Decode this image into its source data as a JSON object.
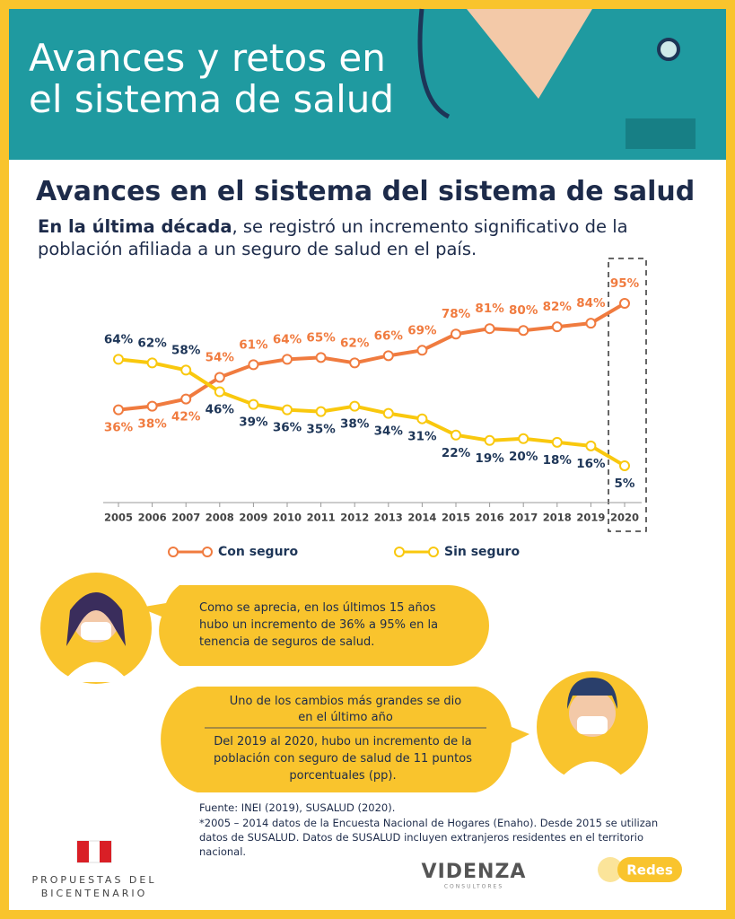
{
  "header": {
    "title_lines": [
      "Avances y retos en",
      "el sistema de salud"
    ]
  },
  "heading": "Avances en el sistema del sistema de salud",
  "intro": {
    "bold": "En la última década",
    "text": ", se registró un incremento significativo de la población afiliada a un seguro de salud en el país."
  },
  "chart_data": {
    "type": "line",
    "categories": [
      "2005",
      "2006",
      "2007",
      "2008",
      "2009",
      "2010",
      "2011",
      "2012",
      "2013",
      "2014",
      "2015",
      "2016",
      "2017",
      "2018",
      "2019",
      "2020"
    ],
    "series": [
      {
        "name": "Con seguro",
        "color": "#f07b3f",
        "values": [
          36,
          38,
          42,
          54,
          61,
          64,
          65,
          62,
          66,
          69,
          78,
          81,
          80,
          82,
          84,
          95
        ],
        "value_labels": [
          "36%",
          "38%",
          "42%",
          "54%",
          "61%",
          "64%",
          "65%",
          "62%",
          "66%",
          "69%",
          "78%",
          "81%",
          "80%",
          "82%",
          "84%",
          "95%"
        ]
      },
      {
        "name": "Sin seguro",
        "color": "#f9c80e",
        "values": [
          64,
          62,
          58,
          46,
          39,
          36,
          35,
          38,
          34,
          31,
          22,
          19,
          20,
          18,
          16,
          5
        ],
        "value_labels": [
          "64%",
          "62%",
          "58%",
          "46%",
          "39%",
          "36%",
          "35%",
          "38%",
          "34%",
          "31%",
          "22%",
          "19%",
          "20%",
          "18%",
          "16%",
          "5%"
        ]
      }
    ]
  },
  "bubbles": {
    "first": "Como se aprecia, en los últimos 15 años hubo un incremento de 36% a 95% en la tenencia de seguros de salud.",
    "second_heading": "Uno de los cambios más grandes se dio en el último año",
    "second_body": "Del 2019 al 2020, hubo un incremento de la población con seguro de salud de 11 puntos porcentuales (pp)."
  },
  "footer": {
    "source": "Fuente: INEI (2019), SUSALUD (2020).",
    "note": "*2005 – 2014 datos de la Encuesta Nacional de Hogares (Enaho). Desde 2015 se utilizan datos de SUSALUD. Datos de SUSALUD incluyen extranjeros residentes en el territorio nacional.",
    "logo_left": [
      "PROPUESTAS DEL",
      "BICENTENARIO"
    ],
    "logo_mid": "VIDENZA",
    "logo_mid_sub": "CONSULTORES",
    "logo_right": "Redes"
  }
}
